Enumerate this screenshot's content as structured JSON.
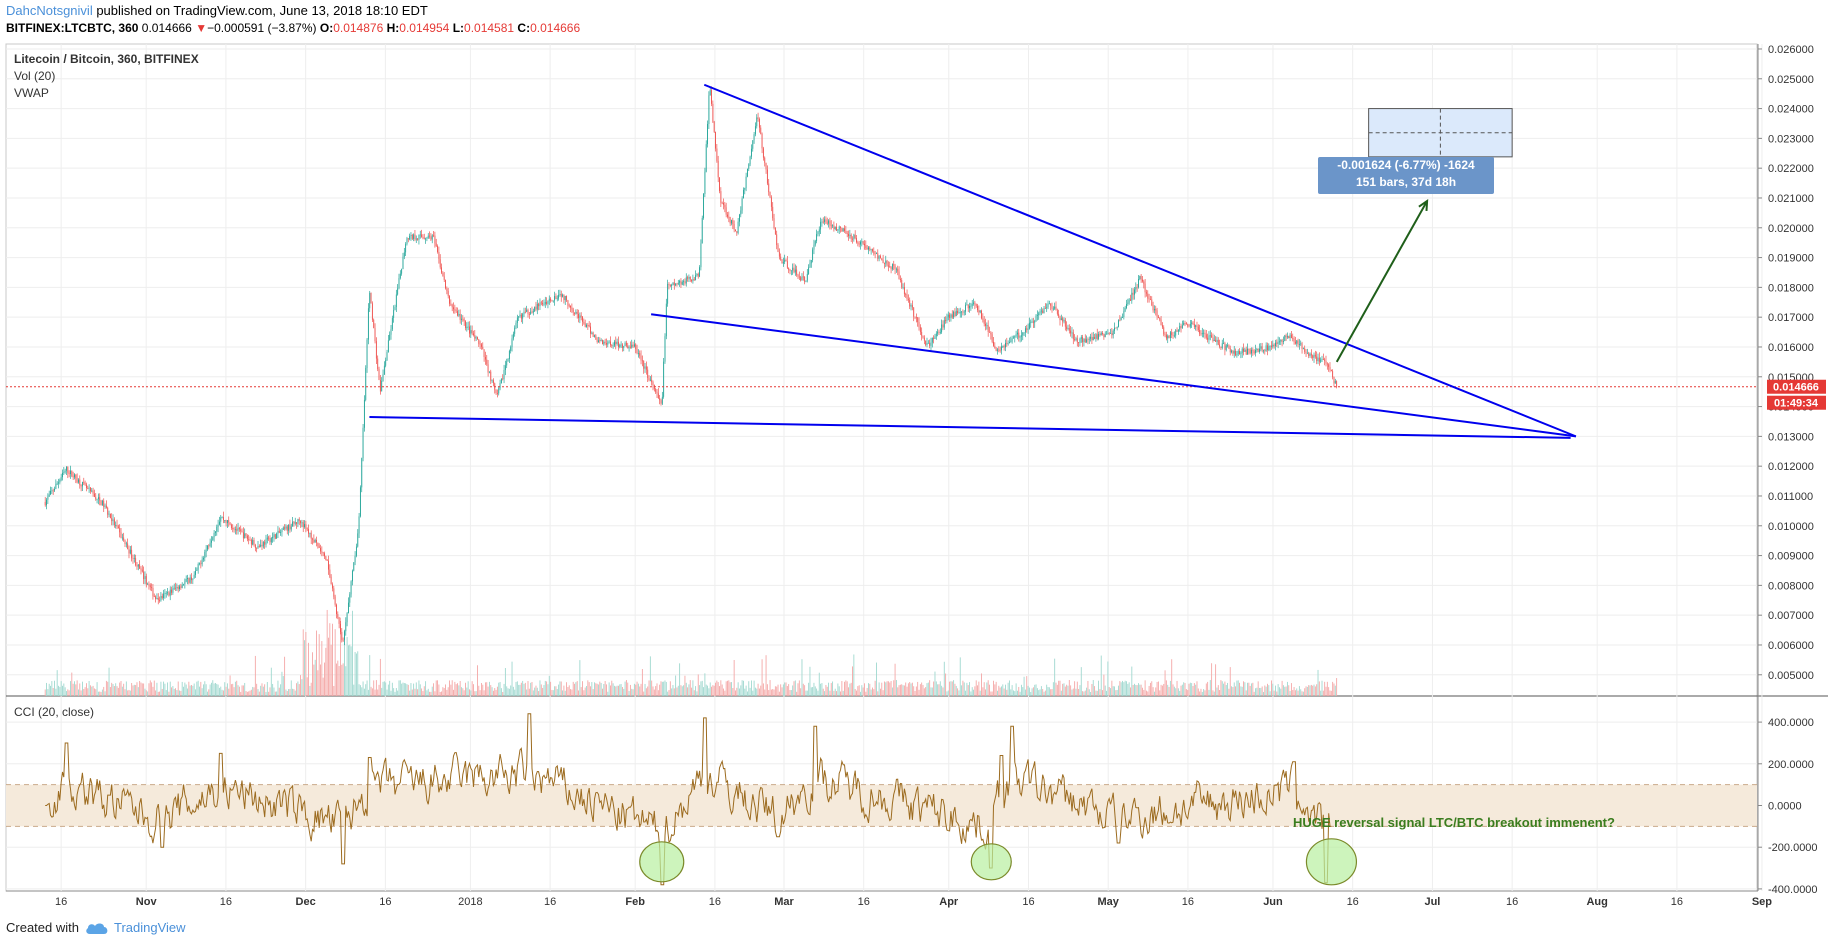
{
  "header": {
    "author": "DahcNotsgnivil",
    "published": "published on TradingView.com, June 13, 2018 18:10 EDT"
  },
  "info": {
    "symbol": "BITFINEX:LTCBTC, 360",
    "last": "0.014666",
    "change_arrow": "▼",
    "change": "−0.000591 (−3.87%)",
    "o_label": "O:",
    "o": "0.014876",
    "h_label": "H:",
    "h": "0.014954",
    "l_label": "L:",
    "l": "0.014581",
    "c_label": "C:",
    "c": "0.014666"
  },
  "legend": {
    "pair": "Litecoin / Bitcoin, 360, BITFINEX",
    "vol": "Vol (20)",
    "vwap": "VWAP",
    "cci": "CCI (20, close)"
  },
  "measure": {
    "line1": "-0.001624 (-6.77%) -1624",
    "line2": "151 bars, 37d 18h"
  },
  "annotation": "HUGE reversal signal LTC/BTC breakout immenent?",
  "price_tag": "0.014666",
  "timer_tag": "01:49:34",
  "footer": {
    "created": "Created with",
    "brand": "TradingView"
  },
  "colors": {
    "up": "#26a69a",
    "down": "#ef5350",
    "trendline": "#0000ee",
    "arrow": "#1f5f1a",
    "cci": "#9c6b1f",
    "cci_band": "#f5eadb",
    "circle": "#b8f0a0",
    "price_tag": "#e53935"
  },
  "chart_data": [
    {
      "type": "candlestick",
      "title": "Litecoin / Bitcoin, 360, BITFINEX",
      "ylim": [
        0.0045,
        0.0261
      ],
      "y_ticks": [
        "0.026000",
        "0.025000",
        "0.024000",
        "0.023000",
        "0.022000",
        "0.021000",
        "0.020000",
        "0.019000",
        "0.018000",
        "0.017000",
        "0.016000",
        "0.015000",
        "0.014000",
        "0.013000",
        "0.012000",
        "0.011000",
        "0.010000",
        "0.009000",
        "0.008000",
        "0.007000",
        "0.006000",
        "0.005000"
      ],
      "x_ticks": [
        "16",
        "Nov",
        "16",
        "Dec",
        "16",
        "2018",
        "16",
        "Feb",
        "16",
        "Mar",
        "16",
        "Apr",
        "16",
        "May",
        "16",
        "Jun",
        "16",
        "Jul",
        "16",
        "Aug",
        "16",
        "Sep"
      ],
      "price_path": [
        {
          "date": "2017-10-13",
          "price": 0.0108
        },
        {
          "date": "2017-10-17",
          "price": 0.0119
        },
        {
          "date": "2017-10-24",
          "price": 0.0107
        },
        {
          "date": "2017-11-03",
          "price": 0.0075
        },
        {
          "date": "2017-11-10",
          "price": 0.0083
        },
        {
          "date": "2017-11-15",
          "price": 0.0103
        },
        {
          "date": "2017-11-22",
          "price": 0.0093
        },
        {
          "date": "2017-11-30",
          "price": 0.0102
        },
        {
          "date": "2017-12-05",
          "price": 0.0088
        },
        {
          "date": "2017-12-08",
          "price": 0.006
        },
        {
          "date": "2017-12-11",
          "price": 0.01
        },
        {
          "date": "2017-12-13",
          "price": 0.018
        },
        {
          "date": "2017-12-15",
          "price": 0.0145
        },
        {
          "date": "2017-12-20",
          "price": 0.0197
        },
        {
          "date": "2017-12-25",
          "price": 0.0197
        },
        {
          "date": "2017-12-28",
          "price": 0.0175
        },
        {
          "date": "2018-01-03",
          "price": 0.016
        },
        {
          "date": "2018-01-06",
          "price": 0.0143
        },
        {
          "date": "2018-01-10",
          "price": 0.017
        },
        {
          "date": "2018-01-18",
          "price": 0.0178
        },
        {
          "date": "2018-01-25",
          "price": 0.0162
        },
        {
          "date": "2018-02-01",
          "price": 0.016
        },
        {
          "date": "2018-02-06",
          "price": 0.014
        },
        {
          "date": "2018-02-07",
          "price": 0.018
        },
        {
          "date": "2018-02-13",
          "price": 0.0184
        },
        {
          "date": "2018-02-15",
          "price": 0.0248
        },
        {
          "date": "2018-02-17",
          "price": 0.021
        },
        {
          "date": "2018-02-20",
          "price": 0.0198
        },
        {
          "date": "2018-02-24",
          "price": 0.0238
        },
        {
          "date": "2018-02-28",
          "price": 0.019
        },
        {
          "date": "2018-03-05",
          "price": 0.0182
        },
        {
          "date": "2018-03-08",
          "price": 0.0203
        },
        {
          "date": "2018-03-14",
          "price": 0.0197
        },
        {
          "date": "2018-03-22",
          "price": 0.0186
        },
        {
          "date": "2018-03-28",
          "price": 0.016
        },
        {
          "date": "2018-04-01",
          "price": 0.017
        },
        {
          "date": "2018-04-06",
          "price": 0.0175
        },
        {
          "date": "2018-04-10",
          "price": 0.0159
        },
        {
          "date": "2018-04-15",
          "price": 0.0165
        },
        {
          "date": "2018-04-20",
          "price": 0.0175
        },
        {
          "date": "2018-04-25",
          "price": 0.0162
        },
        {
          "date": "2018-05-02",
          "price": 0.0165
        },
        {
          "date": "2018-05-07",
          "price": 0.0183
        },
        {
          "date": "2018-05-12",
          "price": 0.0163
        },
        {
          "date": "2018-05-16",
          "price": 0.0168
        },
        {
          "date": "2018-05-20",
          "price": 0.0163
        },
        {
          "date": "2018-05-25",
          "price": 0.0158
        },
        {
          "date": "2018-06-01",
          "price": 0.016
        },
        {
          "date": "2018-06-04",
          "price": 0.0164
        },
        {
          "date": "2018-06-08",
          "price": 0.0157
        },
        {
          "date": "2018-06-11",
          "price": 0.0155
        },
        {
          "date": "2018-06-13",
          "price": 0.014666
        }
      ],
      "current_price": 0.014666,
      "trendlines": [
        {
          "from": {
            "date": "2018-02-14",
            "price": 0.0248
          },
          "to": {
            "date": "2018-07-28",
            "price": 0.013
          }
        },
        {
          "from": {
            "date": "2018-02-04",
            "price": 0.0171
          },
          "to": {
            "date": "2018-07-28",
            "price": 0.013
          }
        },
        {
          "from": {
            "date": "2017-12-13",
            "price": 0.01365
          },
          "to": {
            "date": "2018-07-27",
            "price": 0.01295
          }
        }
      ],
      "arrow": {
        "from": {
          "date": "2018-06-13",
          "price": 0.0155
        },
        "to": {
          "date": "2018-06-30",
          "price": 0.0209
        }
      },
      "measure_box": {
        "from_date": "2018-06-19",
        "to_date": "2018-07-16",
        "price_top": 0.024,
        "price_bottom": 0.02238
      }
    },
    {
      "type": "line",
      "title": "CCI (20, close)",
      "ylim": [
        -450,
        470
      ],
      "y_ticks": [
        "400.0000",
        "200.0000",
        "0.0000",
        "-200.0000",
        "-400.0000"
      ],
      "band": [
        -100,
        100
      ],
      "series": [
        {
          "name": "CCI (20, close)",
          "x": [
            "2017-10-13",
            "2017-10-17",
            "2017-10-25",
            "2017-11-04",
            "2017-11-15",
            "2017-12-08",
            "2017-12-13",
            "2018-01-12",
            "2018-02-06",
            "2018-02-14",
            "2018-02-28",
            "2018-03-07",
            "2018-04-09",
            "2018-04-11",
            "2018-04-13",
            "2018-05-03",
            "2018-06-05",
            "2018-06-11",
            "2018-06-12"
          ],
          "values": [
            0,
            300,
            50,
            -200,
            250,
            -280,
            230,
            440,
            -380,
            420,
            -150,
            380,
            -300,
            240,
            380,
            -180,
            210,
            -370,
            -100
          ]
        }
      ],
      "circles": [
        "2018-02-06",
        "2018-04-09",
        "2018-06-12"
      ]
    }
  ]
}
